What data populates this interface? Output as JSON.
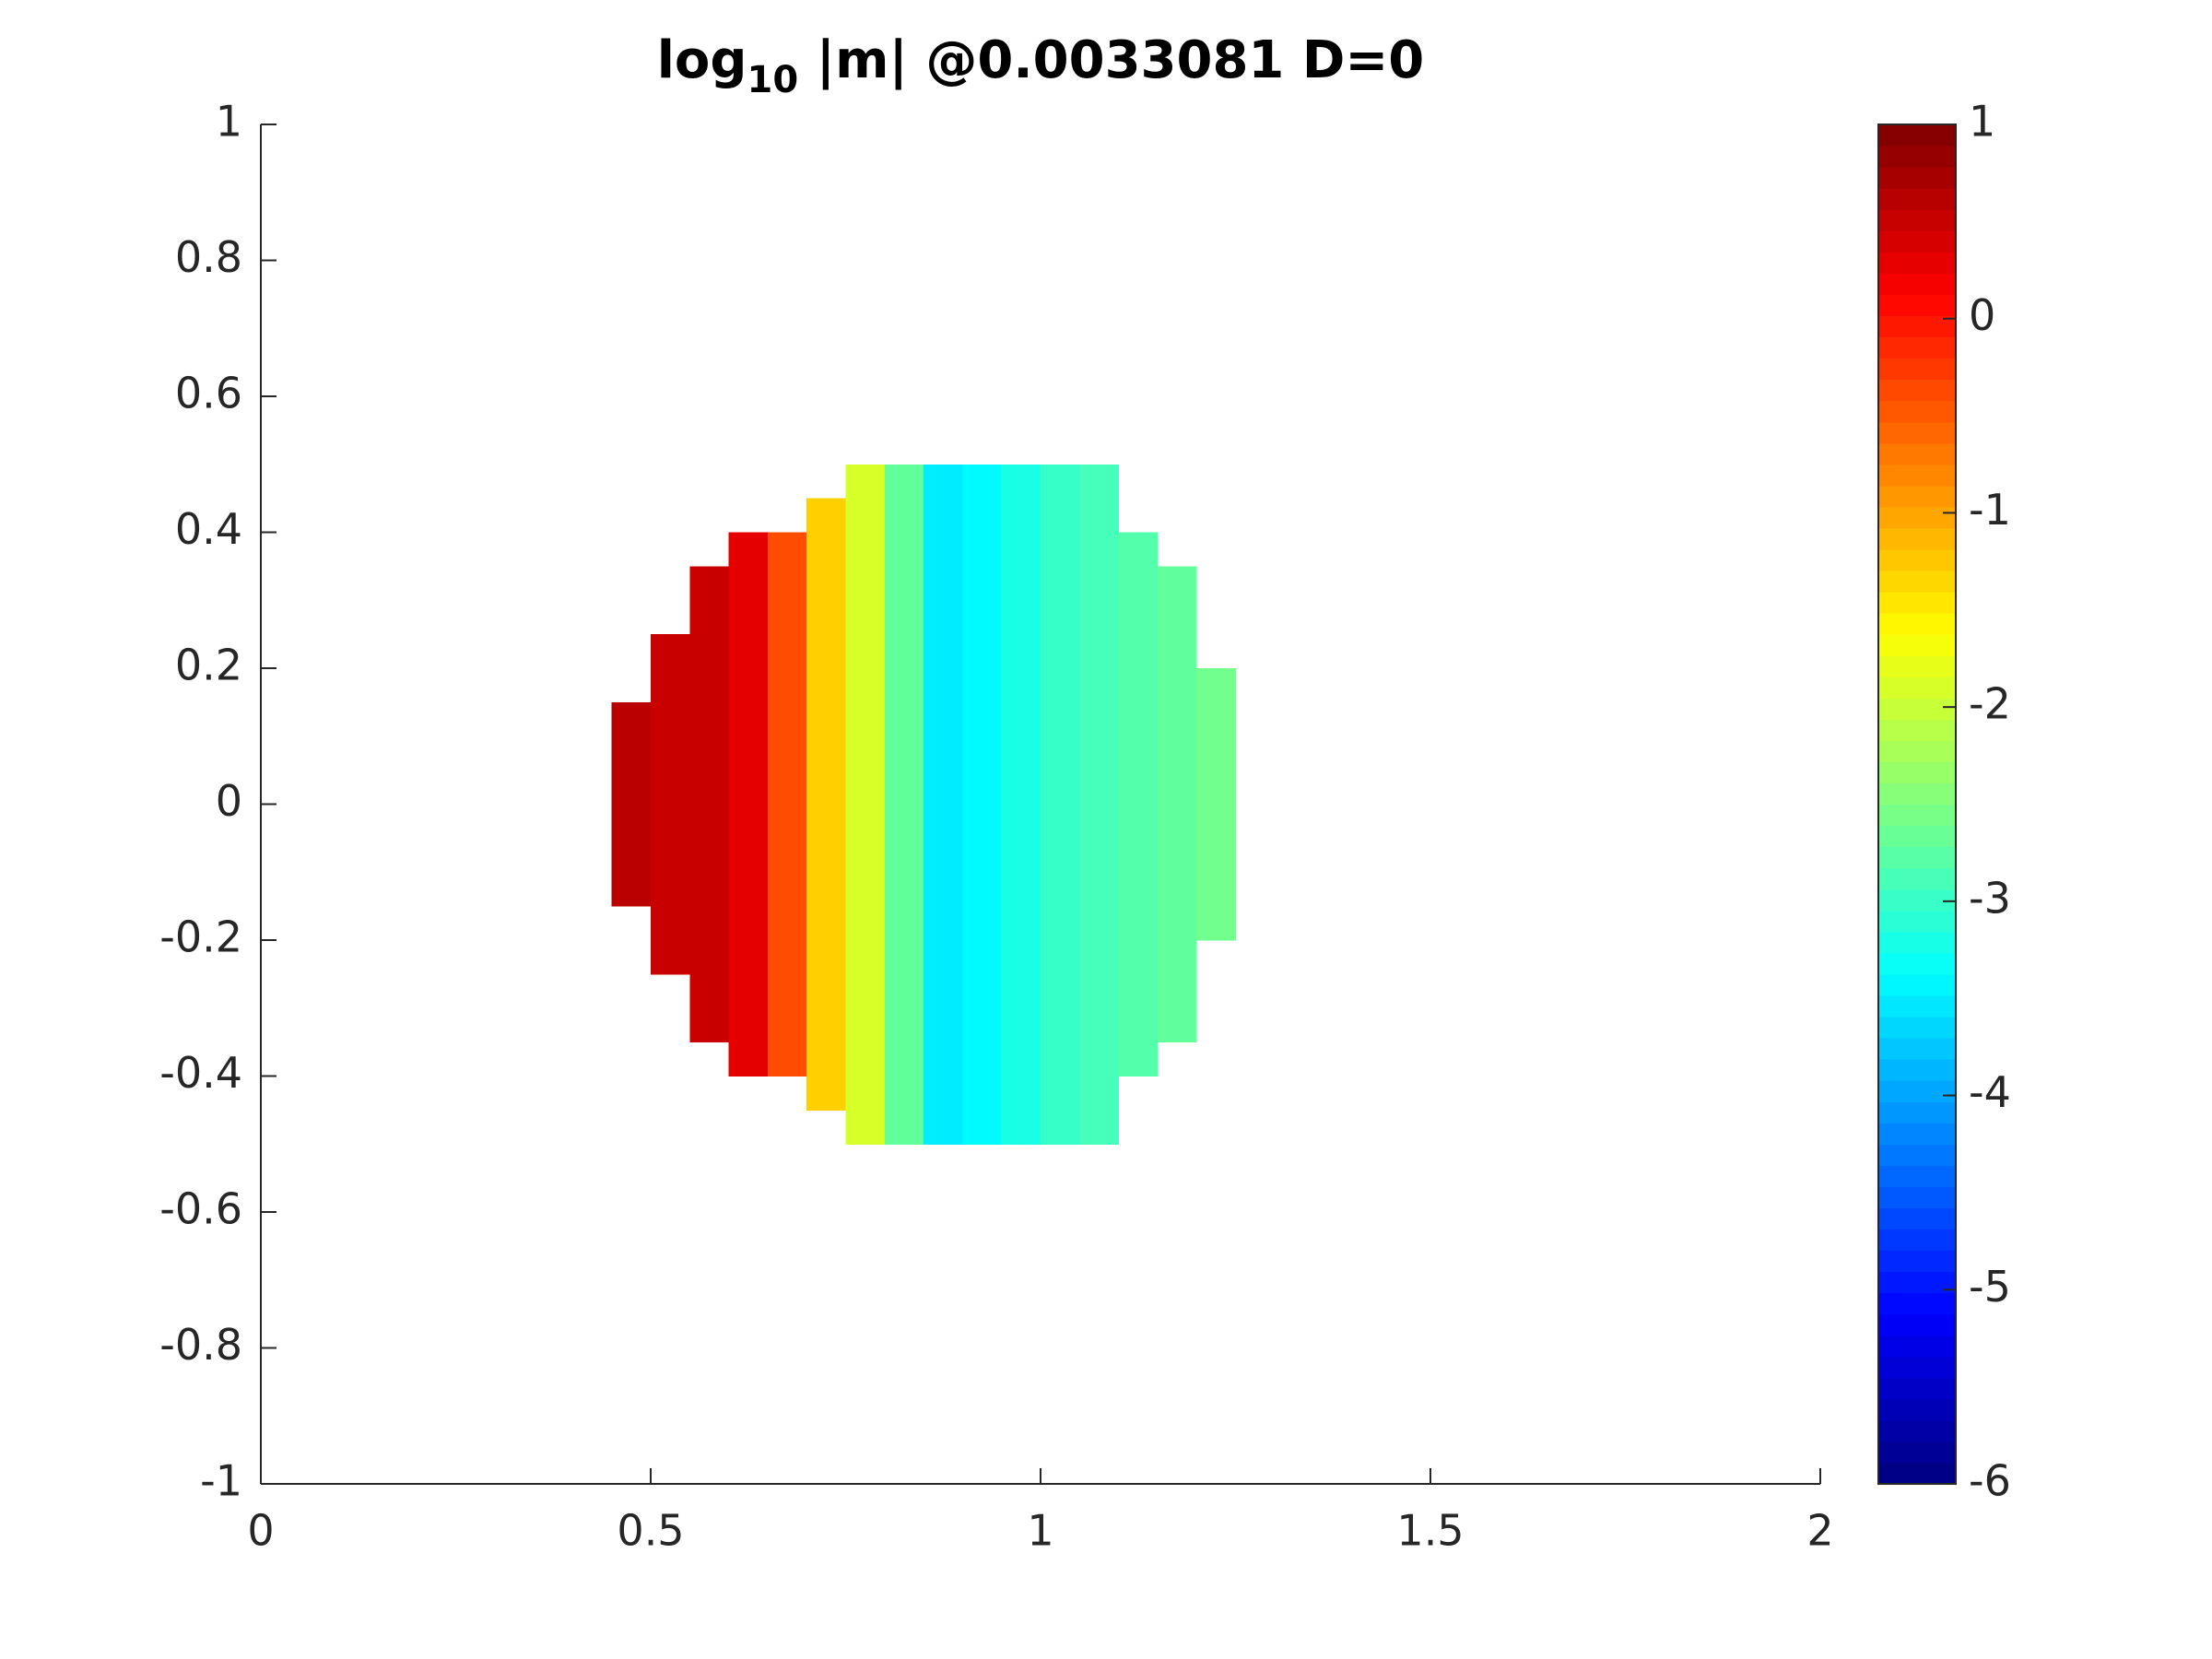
{
  "chart_data": {
    "type": "heatmap",
    "title": {
      "base": "log",
      "subscript": "10",
      "rest": " |m| @0.0033081 D=0"
    },
    "colormap": "jet",
    "x": [
      0.475,
      0.525,
      0.575,
      0.625,
      0.675,
      0.725,
      0.775,
      0.825,
      0.875,
      0.925,
      0.975,
      1.025,
      1.075,
      1.125,
      1.175,
      1.225
    ],
    "y": [
      0.475,
      0.425,
      0.375,
      0.325,
      0.275,
      0.225,
      0.175,
      0.125,
      0.075,
      0.025,
      -0.025,
      -0.075,
      -0.125,
      -0.175,
      -0.225,
      -0.275,
      -0.325,
      -0.375,
      -0.425,
      -0.475
    ],
    "z": [
      [
        null,
        null,
        null,
        null,
        null,
        null,
        -1.9,
        -2.7,
        -3.5,
        -3.4,
        -3.2,
        -3.0,
        -2.9,
        null,
        null,
        null
      ],
      [
        null,
        null,
        null,
        null,
        null,
        -1.3,
        -1.9,
        -2.7,
        -3.5,
        -3.4,
        -3.2,
        -3.0,
        -2.9,
        null,
        null,
        null
      ],
      [
        null,
        null,
        null,
        0.3,
        -0.4,
        -1.3,
        -1.9,
        -2.7,
        -3.5,
        -3.4,
        -3.2,
        -3.0,
        -2.9,
        -2.8,
        null,
        null
      ],
      [
        null,
        null,
        0.5,
        0.3,
        -0.4,
        -1.3,
        -1.9,
        -2.7,
        -3.5,
        -3.4,
        -3.2,
        -3.0,
        -2.9,
        -2.8,
        -2.7,
        null
      ],
      [
        null,
        null,
        0.5,
        0.3,
        -0.4,
        -1.3,
        -1.9,
        -2.7,
        -3.5,
        -3.4,
        -3.2,
        -3.0,
        -2.9,
        -2.8,
        -2.7,
        null
      ],
      [
        null,
        0.5,
        0.5,
        0.3,
        -0.4,
        -1.3,
        -1.9,
        -2.7,
        -3.5,
        -3.4,
        -3.2,
        -3.0,
        -2.9,
        -2.8,
        -2.7,
        null
      ],
      [
        null,
        0.5,
        0.5,
        0.3,
        -0.4,
        -1.3,
        -1.9,
        -2.7,
        -3.5,
        -3.4,
        -3.2,
        -3.0,
        -2.9,
        -2.8,
        -2.7,
        -2.6
      ],
      [
        0.6,
        0.5,
        0.5,
        0.3,
        -0.4,
        -1.3,
        -1.9,
        -2.7,
        -3.5,
        -3.4,
        -3.2,
        -3.0,
        -2.9,
        -2.8,
        -2.7,
        -2.6
      ],
      [
        0.6,
        0.5,
        0.5,
        0.3,
        -0.4,
        -1.3,
        -1.9,
        -2.7,
        -3.5,
        -3.4,
        -3.2,
        -3.0,
        -2.9,
        -2.8,
        -2.7,
        -2.6
      ],
      [
        0.6,
        0.5,
        0.5,
        0.3,
        -0.4,
        -1.3,
        -1.9,
        -2.7,
        -3.5,
        -3.4,
        -3.2,
        -3.0,
        -2.9,
        -2.8,
        -2.7,
        -2.6
      ],
      [
        0.6,
        0.5,
        0.5,
        0.3,
        -0.4,
        -1.3,
        -1.9,
        -2.7,
        -3.5,
        -3.4,
        -3.2,
        -3.0,
        -2.9,
        -2.8,
        -2.7,
        -2.6
      ],
      [
        0.6,
        0.5,
        0.5,
        0.3,
        -0.4,
        -1.3,
        -1.9,
        -2.7,
        -3.5,
        -3.4,
        -3.2,
        -3.0,
        -2.9,
        -2.8,
        -2.7,
        -2.6
      ],
      [
        0.6,
        0.5,
        0.5,
        0.3,
        -0.4,
        -1.3,
        -1.9,
        -2.7,
        -3.5,
        -3.4,
        -3.2,
        -3.0,
        -2.9,
        -2.8,
        -2.7,
        -2.6
      ],
      [
        null,
        0.5,
        0.5,
        0.3,
        -0.4,
        -1.3,
        -1.9,
        -2.7,
        -3.5,
        -3.4,
        -3.2,
        -3.0,
        -2.9,
        -2.8,
        -2.7,
        -2.6
      ],
      [
        null,
        0.5,
        0.5,
        0.3,
        -0.4,
        -1.3,
        -1.9,
        -2.7,
        -3.5,
        -3.4,
        -3.2,
        -3.0,
        -2.9,
        -2.8,
        -2.7,
        null
      ],
      [
        null,
        null,
        0.5,
        0.3,
        -0.4,
        -1.3,
        -1.9,
        -2.7,
        -3.5,
        -3.4,
        -3.2,
        -3.0,
        -2.9,
        -2.8,
        -2.7,
        null
      ],
      [
        null,
        null,
        0.5,
        0.3,
        -0.4,
        -1.3,
        -1.9,
        -2.7,
        -3.5,
        -3.4,
        -3.2,
        -3.0,
        -2.9,
        -2.8,
        -2.7,
        null
      ],
      [
        null,
        null,
        null,
        0.3,
        -0.4,
        -1.3,
        -1.9,
        -2.7,
        -3.5,
        -3.4,
        -3.2,
        -3.0,
        -2.9,
        -2.8,
        null,
        null
      ],
      [
        null,
        null,
        null,
        null,
        null,
        -1.3,
        -1.9,
        -2.7,
        -3.5,
        -3.4,
        -3.2,
        -3.0,
        -2.9,
        null,
        null,
        null
      ],
      [
        null,
        null,
        null,
        null,
        null,
        null,
        -1.9,
        -2.7,
        -3.5,
        -3.4,
        -3.2,
        -3.0,
        -2.9,
        null,
        null,
        null
      ]
    ],
    "xlim": [
      0,
      2
    ],
    "xticks": [
      0,
      0.5,
      1,
      1.5,
      2
    ],
    "ylim": [
      -1,
      1
    ],
    "yticks": [
      -1,
      -0.8,
      -0.6,
      -0.4,
      -0.2,
      0,
      0.2,
      0.4,
      0.6,
      0.8,
      1
    ],
    "clim": [
      -6,
      1
    ],
    "cticks": [
      -6,
      -5,
      -4,
      -3,
      -2,
      -1,
      0,
      1
    ]
  }
}
